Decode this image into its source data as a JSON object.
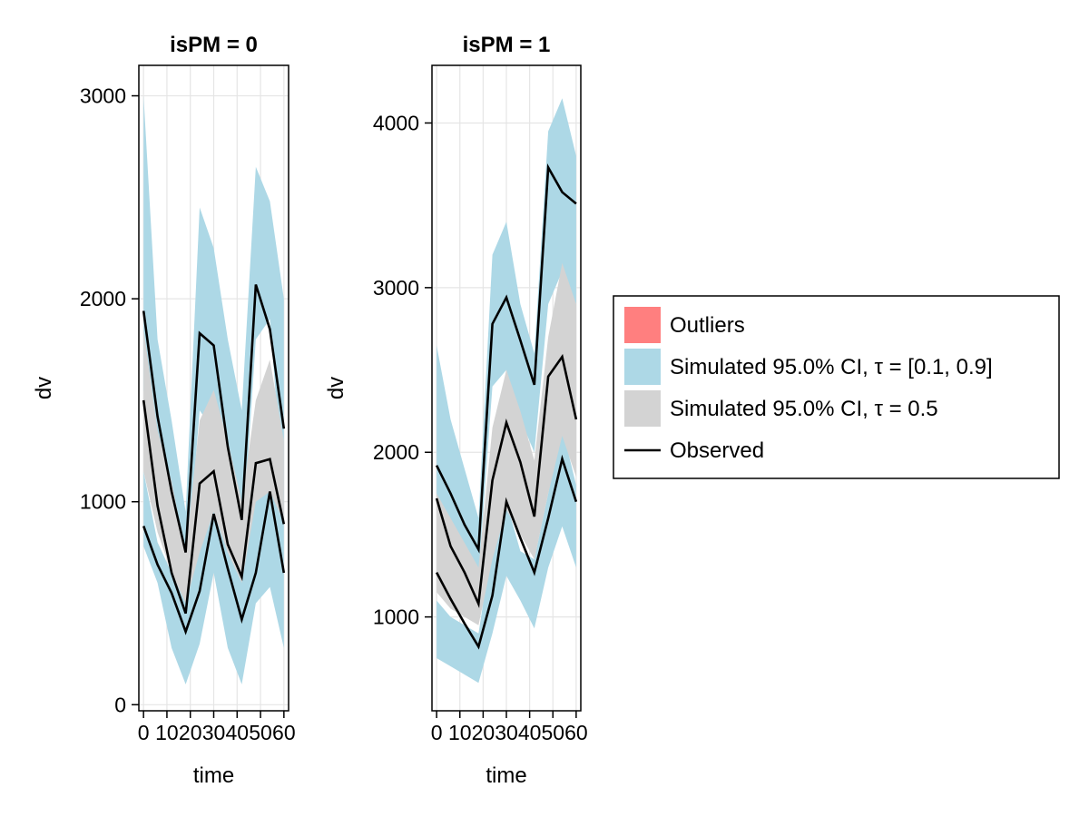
{
  "chart_data": [
    {
      "type": "area",
      "title": "isPM = 0",
      "xlabel": "time",
      "ylabel": "dv",
      "xlim": [
        -2,
        62
      ],
      "ylim": [
        -30,
        3150
      ],
      "xticks": [
        0,
        10,
        20,
        30,
        40,
        50,
        60
      ],
      "xtick_labels": [
        "0",
        "10",
        "20",
        "30",
        "40",
        "50",
        "60"
      ],
      "yticks": [
        0,
        1000,
        2000,
        3000
      ],
      "ytick_labels": [
        "0",
        "1000",
        "2000",
        "3000"
      ],
      "grid": true,
      "x": [
        0,
        6,
        12,
        18,
        24,
        30,
        36,
        42,
        48,
        54,
        60
      ],
      "bands": [
        {
          "name": "Simulated 95.0% CI, τ = [0.1, 0.9] (upper)",
          "color": "#add8e6",
          "lower": [
            1550,
            1150,
            900,
            600,
            1450,
            1350,
            1100,
            750,
            1800,
            1900,
            1000
          ],
          "upper": [
            3000,
            1800,
            1400,
            950,
            2450,
            2250,
            1800,
            1450,
            2650,
            2480,
            2000
          ]
        },
        {
          "name": "Simulated 95.0% CI, τ = [0.1, 0.9] (lower)",
          "color": "#add8e6",
          "lower": [
            780,
            600,
            280,
            100,
            300,
            650,
            280,
            100,
            500,
            580,
            280
          ],
          "upper": [
            1150,
            800,
            650,
            680,
            750,
            1050,
            750,
            800,
            1050,
            1300,
            1050
          ]
        },
        {
          "name": "Simulated 95.0% CI, τ = 0.5",
          "color": "#d3d3d3",
          "lower": [
            1150,
            850,
            650,
            500,
            750,
            950,
            750,
            600,
            1000,
            1050,
            900
          ],
          "upper": [
            1850,
            1350,
            1100,
            750,
            1400,
            1550,
            1300,
            1000,
            1500,
            1700,
            1300
          ]
        }
      ],
      "series": [
        {
          "name": "Observed (upper)",
          "values": [
            1940,
            1420,
            1050,
            750,
            1830,
            1770,
            1270,
            910,
            2070,
            1850,
            1360
          ]
        },
        {
          "name": "Observed (median)",
          "values": [
            1500,
            980,
            650,
            450,
            1090,
            1150,
            790,
            630,
            1190,
            1210,
            890
          ]
        },
        {
          "name": "Observed (lower)",
          "values": [
            880,
            690,
            550,
            360,
            560,
            940,
            670,
            420,
            650,
            1050,
            650
          ]
        }
      ]
    },
    {
      "type": "area",
      "title": "isPM = 1",
      "xlabel": "time",
      "ylabel": "dv",
      "xlim": [
        -2,
        62
      ],
      "ylim": [
        430,
        4350
      ],
      "xticks": [
        0,
        10,
        20,
        30,
        40,
        50,
        60
      ],
      "xtick_labels": [
        "0",
        "10",
        "20",
        "30",
        "40",
        "50",
        "60"
      ],
      "yticks": [
        1000,
        2000,
        3000,
        4000
      ],
      "ytick_labels": [
        "1000",
        "2000",
        "3000",
        "4000"
      ],
      "grid": true,
      "x": [
        0,
        6,
        12,
        18,
        24,
        30,
        36,
        42,
        48,
        54,
        60
      ],
      "bands": [
        {
          "name": "Simulated 95.0% CI, τ = [0.1, 0.9] (upper)",
          "color": "#add8e6",
          "lower": [
            1700,
            1500,
            1350,
            1250,
            2400,
            2500,
            2200,
            2000,
            2900,
            3100,
            2900
          ],
          "upper": [
            2650,
            2200,
            1900,
            1600,
            3200,
            3400,
            2900,
            2600,
            3950,
            4150,
            3800
          ]
        },
        {
          "name": "Simulated 95.0% CI, τ = [0.1, 0.9] (lower)",
          "color": "#add8e6",
          "lower": [
            750,
            700,
            650,
            600,
            900,
            1250,
            1100,
            930,
            1300,
            1550,
            1300
          ],
          "upper": [
            1100,
            1000,
            950,
            900,
            1450,
            1700,
            1400,
            1350,
            1750,
            2150,
            1800
          ]
        },
        {
          "name": "Simulated 95.0% CI, τ = 0.5",
          "color": "#d3d3d3",
          "lower": [
            1150,
            1050,
            1000,
            950,
            1350,
            1650,
            1500,
            1350,
            1750,
            2100,
            1850
          ],
          "upper": [
            1750,
            1600,
            1450,
            1300,
            2150,
            2500,
            2250,
            1950,
            2700,
            3150,
            2900
          ]
        }
      ],
      "series": [
        {
          "name": "Observed (upper)",
          "values": [
            1920,
            1750,
            1560,
            1410,
            2780,
            2940,
            2680,
            2410,
            3730,
            3580,
            3510
          ]
        },
        {
          "name": "Observed (median)",
          "values": [
            1720,
            1430,
            1270,
            1080,
            1830,
            2180,
            1940,
            1610,
            2460,
            2580,
            2200
          ]
        },
        {
          "name": "Observed (lower)",
          "values": [
            1270,
            1110,
            960,
            820,
            1130,
            1700,
            1480,
            1270,
            1600,
            1960,
            1700
          ]
        }
      ]
    }
  ],
  "legend": {
    "placement": "right",
    "items": [
      {
        "label": "Outliers",
        "kind": "patch",
        "color": "#ff7f7f"
      },
      {
        "label": "Simulated 95.0% CI, τ = [0.1, 0.9]",
        "kind": "patch",
        "color": "#add8e6"
      },
      {
        "label": "Simulated 95.0% CI, τ = 0.5",
        "kind": "patch",
        "color": "#d3d3d3"
      },
      {
        "label": "Observed",
        "kind": "line",
        "color": "#000000"
      }
    ]
  }
}
